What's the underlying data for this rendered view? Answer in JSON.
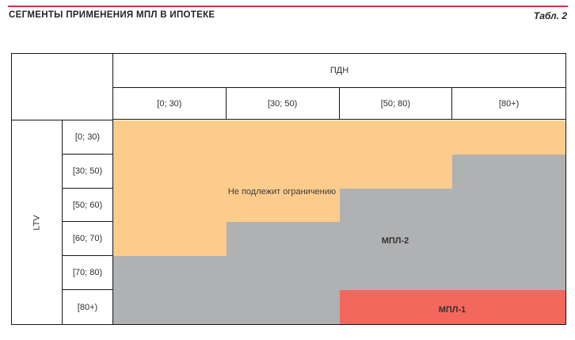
{
  "page": {
    "title": "СЕГМЕНТЫ ПРИМЕНЕНИЯ МПЛ В ИПОТЕКЕ",
    "table_ref": "Табл. 2",
    "accent_rule_color": "#d4323f"
  },
  "matrix": {
    "col_axis_label": "ПДН",
    "row_axis_label": "LTV",
    "col_headers": [
      "[0; 30)",
      "[30; 50)",
      "[50; 80)",
      "[80+)"
    ],
    "row_headers": [
      "[0; 30)",
      "[30; 50)",
      "[50; 60)",
      "[60; 70)",
      "[70; 80)",
      "[80+)"
    ],
    "zones": [
      [
        "unrestricted",
        "unrestricted",
        "unrestricted",
        "unrestricted"
      ],
      [
        "unrestricted",
        "unrestricted",
        "unrestricted",
        "mpl2"
      ],
      [
        "unrestricted",
        "unrestricted",
        "mpl2",
        "mpl2"
      ],
      [
        "unrestricted",
        "mpl2",
        "mpl2",
        "mpl2"
      ],
      [
        "mpl2",
        "mpl2",
        "mpl2",
        "mpl2"
      ],
      [
        "mpl2",
        "mpl2",
        "mpl1",
        "mpl1"
      ]
    ],
    "zone_labels": {
      "unrestricted": "Не подлежит ограничению",
      "mpl2": "МПЛ-2",
      "mpl1": "МПЛ-1"
    },
    "zone_colors": {
      "unrestricted": "#fccc8c",
      "mpl2": "#b0b1b3",
      "mpl1": "#f3685d"
    }
  },
  "chart_data": {
    "type": "heatmap",
    "title": "СЕГМЕНТЫ ПРИМЕНЕНИЯ МПЛ В ИПОТЕКЕ",
    "caption": "Табл. 2",
    "x_axis_label": "ПДН",
    "y_axis_label": "LTV",
    "x_categories": [
      "[0; 30)",
      "[30; 50)",
      "[50; 80)",
      "[80+)"
    ],
    "y_categories": [
      "[0; 30)",
      "[30; 50)",
      "[50; 60)",
      "[60; 70)",
      "[70; 80)",
      "[80+)"
    ],
    "cells": [
      [
        "Не подлежит ограничению",
        "Не подлежит ограничению",
        "Не подлежит ограничению",
        "Не подлежит ограничению"
      ],
      [
        "Не подлежит ограничению",
        "Не подлежит ограничению",
        "Не подлежит ограничению",
        "МПЛ-2"
      ],
      [
        "Не подлежит ограничению",
        "Не подлежит ограничению",
        "МПЛ-2",
        "МПЛ-2"
      ],
      [
        "Не подлежит ограничению",
        "МПЛ-2",
        "МПЛ-2",
        "МПЛ-2"
      ],
      [
        "МПЛ-2",
        "МПЛ-2",
        "МПЛ-2",
        "МПЛ-2"
      ],
      [
        "МПЛ-2",
        "МПЛ-2",
        "МПЛ-1",
        "МПЛ-1"
      ]
    ],
    "legend": [
      {
        "label": "Не подлежит ограничению",
        "color": "#fccc8c"
      },
      {
        "label": "МПЛ-2",
        "color": "#b0b1b3"
      },
      {
        "label": "МПЛ-1",
        "color": "#f3685d"
      }
    ],
    "layout": {
      "grid": true,
      "legend_position": "inline-labels"
    }
  }
}
